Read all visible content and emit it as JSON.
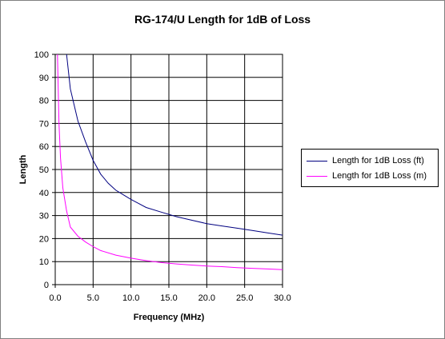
{
  "chart_data": {
    "type": "line",
    "title": "RG-174/U Length for 1dB of Loss",
    "xlabel": "Frequency (MHz)",
    "ylabel": "Length",
    "xlim": [
      0,
      30
    ],
    "ylim": [
      0,
      100
    ],
    "x_ticks": [
      "0.0",
      "5.0",
      "10.0",
      "15.0",
      "20.0",
      "25.0",
      "30.0"
    ],
    "y_ticks": [
      "0",
      "10",
      "20",
      "30",
      "40",
      "50",
      "60",
      "70",
      "80",
      "90",
      "100"
    ],
    "grid": true,
    "legend_position": "right",
    "series": [
      {
        "name": "Length for 1dB Loss (ft)",
        "color": "#000080",
        "x": [
          1.5,
          2,
          3,
          4,
          5,
          6,
          7,
          8,
          9,
          10,
          12,
          14,
          16,
          18,
          20,
          22,
          24,
          26,
          28,
          30
        ],
        "y": [
          100,
          85,
          71,
          62,
          54,
          48,
          44,
          41,
          39,
          37,
          33.5,
          31.5,
          29.5,
          28,
          26.5,
          25.5,
          24.5,
          23.5,
          22.5,
          21.5
        ]
      },
      {
        "name": "Length for 1dB Loss (m)",
        "color": "#FF00FF",
        "x": [
          0.3,
          0.5,
          0.7,
          1,
          1.5,
          2,
          3,
          4,
          5,
          6,
          8,
          10,
          12,
          14,
          16,
          18,
          20,
          22,
          24,
          26,
          28,
          30
        ],
        "y": [
          100,
          70,
          55,
          42,
          32,
          25,
          21,
          18.5,
          16.5,
          14.8,
          12.8,
          11.5,
          10.4,
          9.6,
          9,
          8.5,
          8.1,
          7.8,
          7.4,
          7.1,
          6.8,
          6.5
        ]
      }
    ]
  }
}
